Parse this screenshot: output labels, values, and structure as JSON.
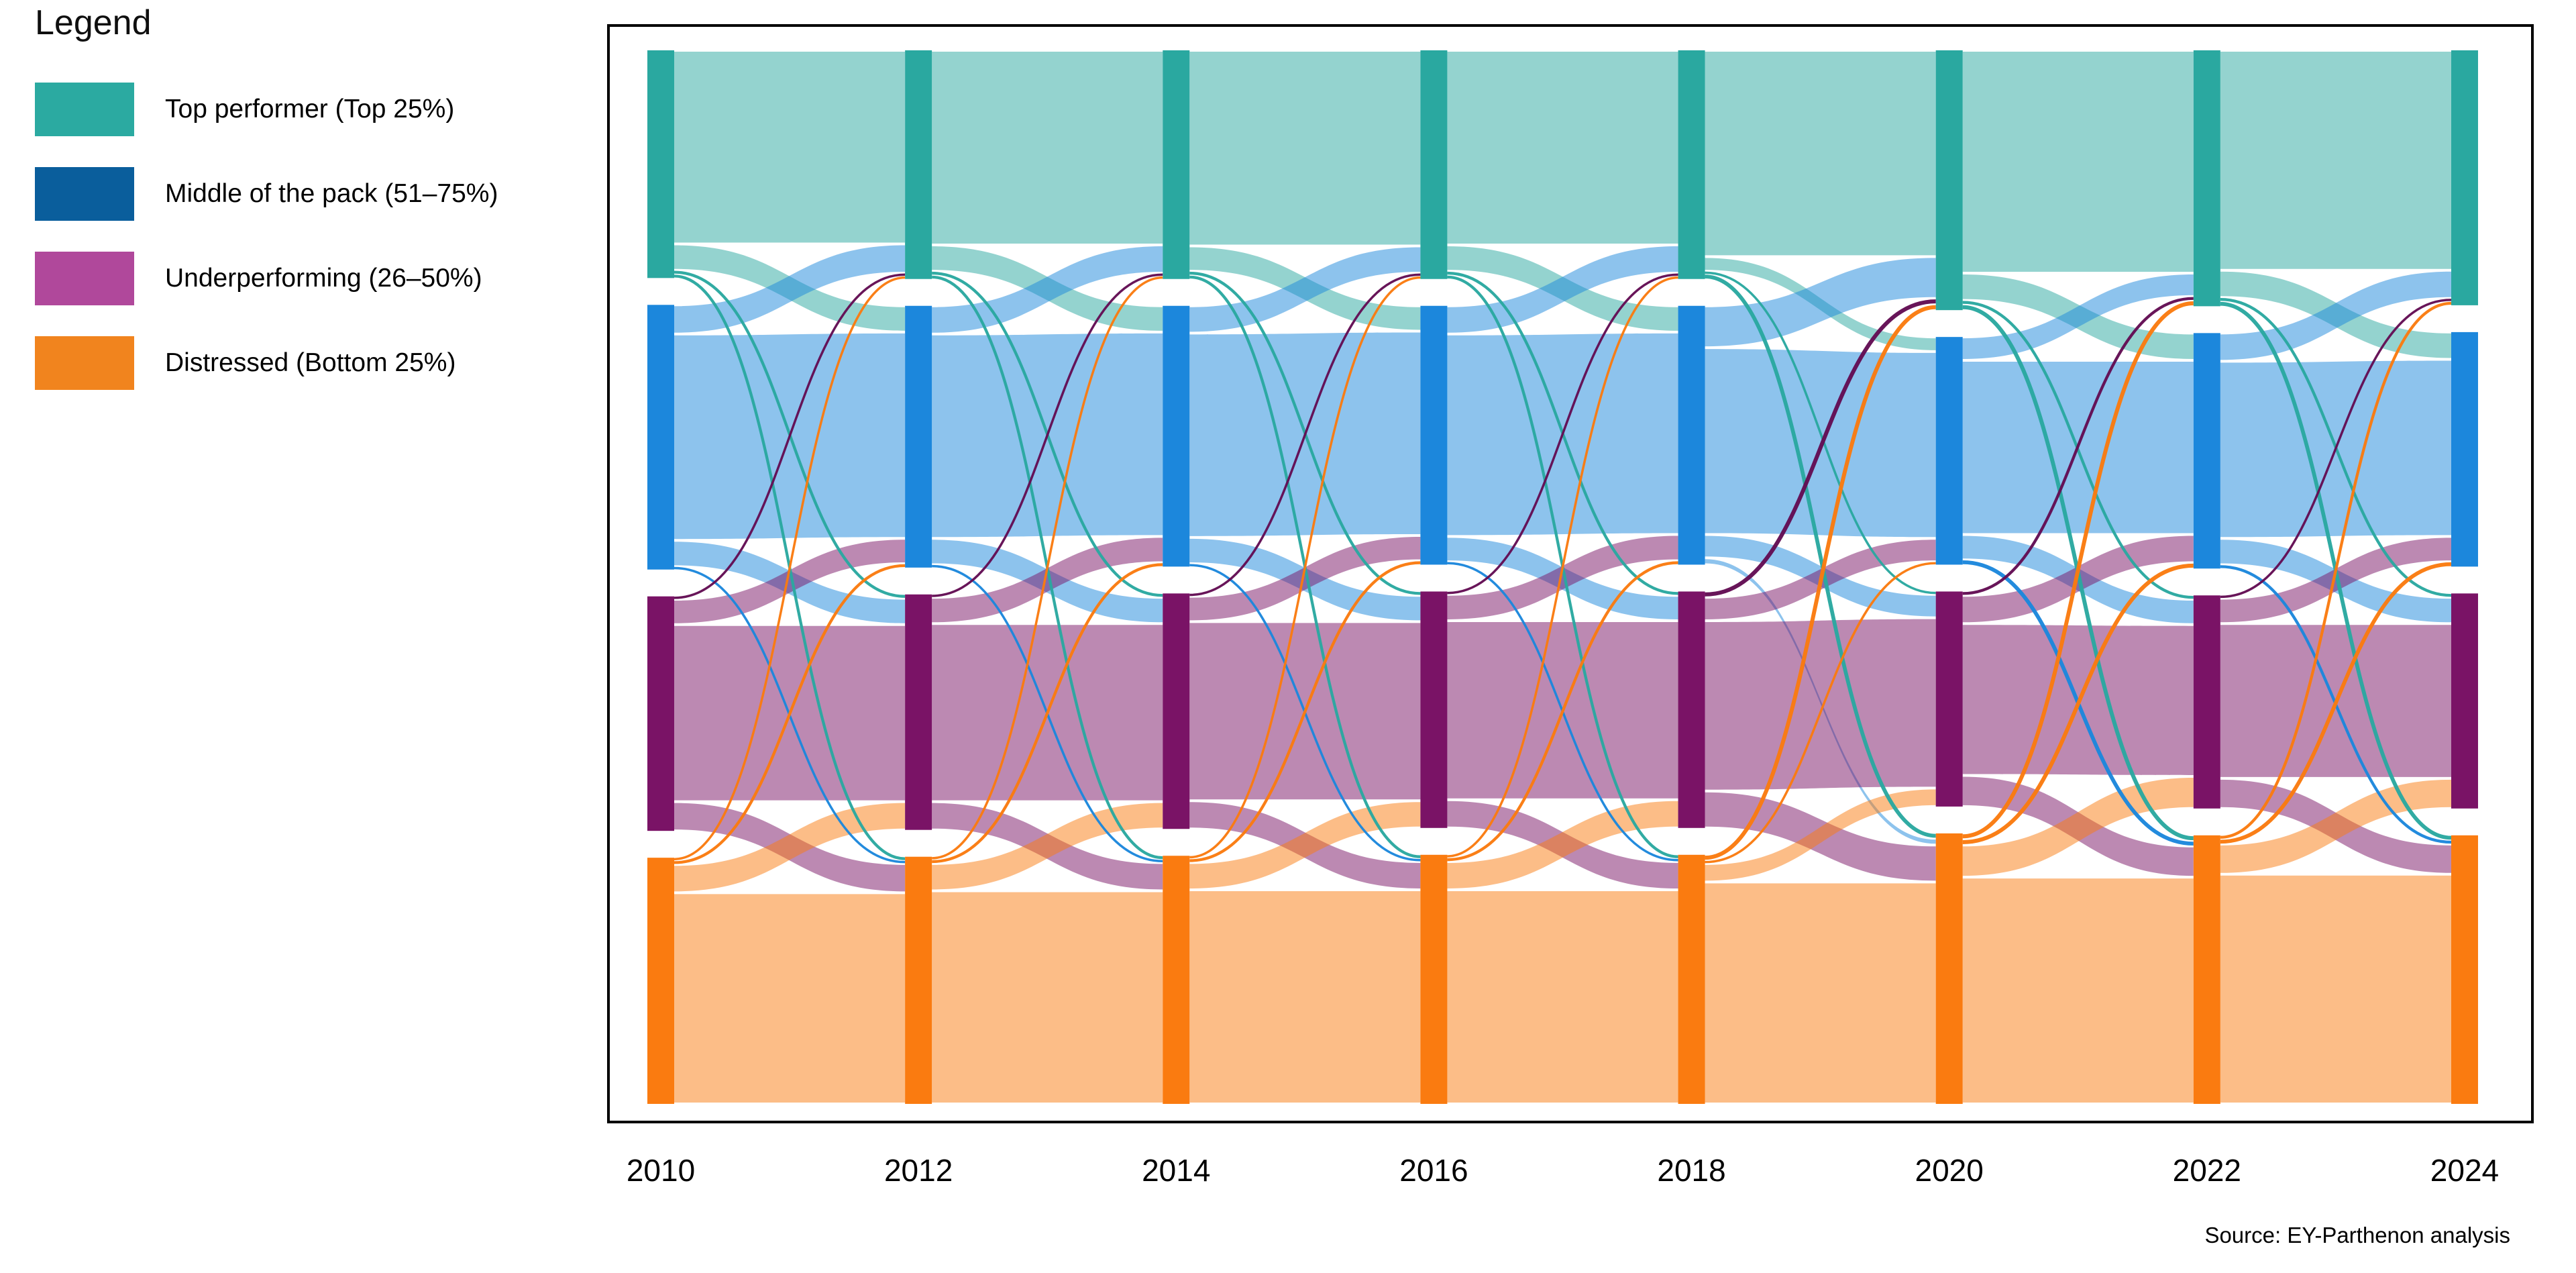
{
  "legend": {
    "title": "Legend",
    "items": [
      {
        "key": "top",
        "label": "Top performer (Top 25%)",
        "color": "#2BAAA1"
      },
      {
        "key": "middle",
        "label": "Middle of the pack (51–75%)",
        "color": "#0A5E9C"
      },
      {
        "key": "under",
        "label": "Underperforming (26–50%)",
        "color": "#B0489B"
      },
      {
        "key": "distressed",
        "label": "Distressed (Bottom 25%)",
        "color": "#F1841E"
      }
    ]
  },
  "source_note": "Source: EY-Parthenon analysis",
  "colors": {
    "node_top": "#2AA8A0",
    "node_middle": "#1C87DC",
    "node_under": "#7A1366",
    "node_distressed": "#FA7B10",
    "line_under": "#630D54",
    "frame": "#000000",
    "background": "#FFFFFF"
  },
  "chart_data": {
    "type": "sankey",
    "years": [
      "2010",
      "2012",
      "2014",
      "2016",
      "2018",
      "2020",
      "2022",
      "2024"
    ],
    "categories": [
      "Top performer (Top 25%)",
      "Middle of the pack (51–75%)",
      "Underperforming (26–50%)",
      "Distressed (Bottom 25%)"
    ],
    "category_keys": [
      "top",
      "middle",
      "under",
      "distressed"
    ],
    "node_shares_pct": {
      "2010": [
        23.4,
        27.2,
        24.1,
        25.3
      ],
      "2012": [
        23.5,
        26.9,
        24.2,
        25.4
      ],
      "2014": [
        23.5,
        26.8,
        24.2,
        25.5
      ],
      "2016": [
        23.5,
        26.6,
        24.3,
        25.6
      ],
      "2018": [
        23.5,
        26.6,
        24.3,
        25.6
      ],
      "2020": [
        26.7,
        23.4,
        22.1,
        27.8
      ],
      "2022": [
        26.3,
        24.2,
        21.9,
        27.6
      ],
      "2024": [
        26.2,
        24.1,
        22.1,
        27.6
      ]
    },
    "transitions": [
      {
        "from": "2010",
        "to": "2012",
        "matrix": [
          [
            19.9,
            2.7,
            0.4,
            0.4
          ],
          [
            3.0,
            21.2,
            2.7,
            0.3
          ],
          [
            0.3,
            2.6,
            18.2,
            3.0
          ],
          [
            0.3,
            0.4,
            2.9,
            21.7
          ]
        ]
      },
      {
        "from": "2012",
        "to": "2014",
        "matrix": [
          [
            20.0,
            2.7,
            0.4,
            0.4
          ],
          [
            2.9,
            21.0,
            2.7,
            0.3
          ],
          [
            0.3,
            2.7,
            18.3,
            2.9
          ],
          [
            0.3,
            0.4,
            2.8,
            21.9
          ]
        ]
      },
      {
        "from": "2014",
        "to": "2016",
        "matrix": [
          [
            20.1,
            2.6,
            0.4,
            0.4
          ],
          [
            2.8,
            21.0,
            2.7,
            0.3
          ],
          [
            0.3,
            2.6,
            18.4,
            2.9
          ],
          [
            0.3,
            0.4,
            2.8,
            22.0
          ]
        ]
      },
      {
        "from": "2016",
        "to": "2018",
        "matrix": [
          [
            20.0,
            2.7,
            0.4,
            0.4
          ],
          [
            2.9,
            20.8,
            2.6,
            0.3
          ],
          [
            0.3,
            2.7,
            18.4,
            2.9
          ],
          [
            0.3,
            0.4,
            2.9,
            22.0
          ]
        ]
      },
      {
        "from": "2018",
        "to": "2020",
        "matrix": [
          [
            21.2,
            1.5,
            0.3,
            0.5
          ],
          [
            4.3,
            19.2,
            2.4,
            0.7
          ],
          [
            0.6,
            2.4,
            17.5,
            3.8
          ],
          [
            0.6,
            0.3,
            1.9,
            22.8
          ]
        ]
      },
      {
        "from": "2020",
        "to": "2022",
        "matrix": [
          [
            22.9,
            2.8,
            0.4,
            0.6
          ],
          [
            2.4,
            17.9,
            2.6,
            0.5
          ],
          [
            0.4,
            2.9,
            15.6,
            3.2
          ],
          [
            0.6,
            0.6,
            3.3,
            23.3
          ]
        ]
      },
      {
        "from": "2022",
        "to": "2024",
        "matrix": [
          [
            22.6,
            2.8,
            0.4,
            0.5
          ],
          [
            2.9,
            18.2,
            2.7,
            0.4
          ],
          [
            0.3,
            2.6,
            15.9,
            3.1
          ],
          [
            0.4,
            0.5,
            3.1,
            23.6
          ]
        ]
      }
    ]
  }
}
